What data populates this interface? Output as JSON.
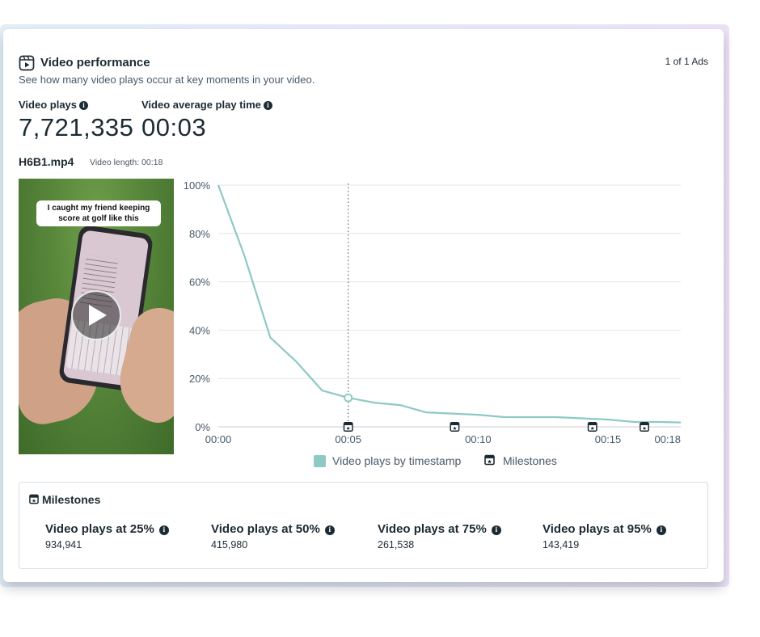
{
  "header": {
    "title": "Video performance",
    "subtitle": "See how many video plays occur at key moments in your video.",
    "ads_count": "1 of 1 Ads",
    "icon": "video-performance-icon"
  },
  "metrics": [
    {
      "label": "Video plays",
      "value": "7,721,335",
      "info_icon": "info-icon"
    },
    {
      "label": "Video average play time",
      "value": "00:03",
      "info_icon": "info-icon"
    }
  ],
  "video": {
    "file_name": "H6B1.mp4",
    "length_label": "Video length: 00:18",
    "thumbnail_caption": "I caught my friend keeping score at golf like this",
    "play_icon": "play-icon"
  },
  "chart_data": {
    "type": "line",
    "x_ticks": [
      "00:00",
      "00:05",
      "00:10",
      "00:15",
      "00:18"
    ],
    "y_ticks": [
      "0%",
      "20%",
      "40%",
      "60%",
      "80%",
      "100%"
    ],
    "ylim": [
      0,
      100
    ],
    "xlim": [
      0,
      17.8
    ],
    "series": [
      {
        "name": "Video plays by timestamp",
        "color": "#8ec9c4",
        "x": [
          0,
          1,
          2,
          3,
          4,
          5,
          6,
          7,
          8,
          9,
          10,
          11,
          12,
          13,
          14,
          15,
          16,
          17,
          17.8
        ],
        "y": [
          100,
          71,
          37,
          27,
          15,
          12,
          10,
          9,
          6,
          5.5,
          5,
          4,
          4,
          4,
          3.5,
          3,
          2,
          2,
          1.8
        ]
      }
    ],
    "marker": {
      "x": 5,
      "y": 12
    },
    "milestone_x": [
      5,
      9.1,
      14.4,
      16.4
    ],
    "grid": true
  },
  "legend": {
    "series_label": "Video plays by timestamp",
    "milestones_label": "Milestones"
  },
  "milestones": {
    "title": "Milestones",
    "items": [
      {
        "label": "Video plays at 25%",
        "value": "934,941"
      },
      {
        "label": "Video plays at 50%",
        "value": "415,980"
      },
      {
        "label": "Video plays at 75%",
        "value": "261,538"
      },
      {
        "label": "Video plays at 95%",
        "value": "143,419"
      }
    ]
  }
}
